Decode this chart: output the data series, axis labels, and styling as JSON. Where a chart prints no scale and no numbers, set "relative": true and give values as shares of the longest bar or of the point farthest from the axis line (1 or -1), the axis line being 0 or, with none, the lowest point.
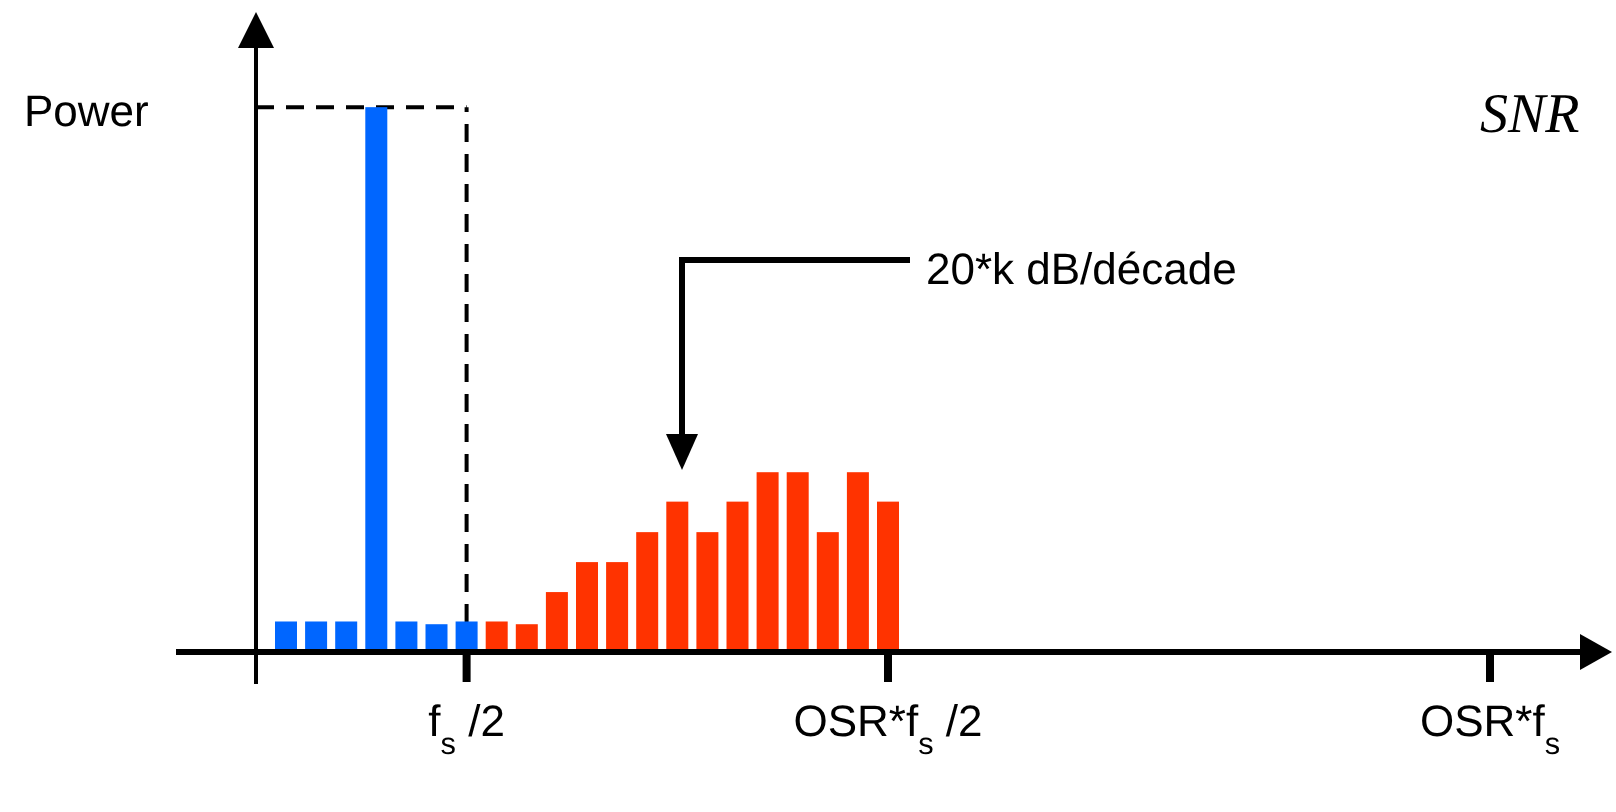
{
  "chart_data": {
    "type": "bar",
    "ylabel": "Power",
    "relative": true,
    "categories": [
      null,
      null,
      null,
      null,
      null,
      null,
      "f$_{s}$ /2",
      null,
      null,
      null,
      null,
      null,
      null,
      null,
      null,
      null,
      null,
      null,
      null,
      null,
      "OSR*f$_{s}$ /2",
      null,
      null,
      null,
      null,
      null,
      null,
      null,
      null,
      null,
      null,
      null,
      null,
      null,
      null,
      null,
      null,
      null,
      null,
      null,
      "OSR*f$_{s}$",
      null,
      null,
      null
    ],
    "values": [
      0.056,
      0.056,
      0.056,
      1,
      0.056,
      0.051,
      0.056,
      0.056,
      0.051,
      0.11,
      0.165,
      0.165,
      0.22,
      0.276,
      0.22,
      0.276,
      0.33,
      0.33,
      0.22,
      0.33,
      0.276,
      null,
      null,
      null,
      null,
      null,
      null,
      null,
      null,
      null,
      null,
      null,
      null,
      null,
      null,
      null,
      null,
      null,
      null,
      null,
      null,
      null,
      null,
      null
    ],
    "colors": [
      "#0066ff",
      "#0066ff",
      "#0066ff",
      "#0066ff",
      "#0066ff",
      "#0066ff",
      "#0066ff",
      "#ff3300",
      "#ff3300",
      "#ff3300",
      "#ff3300",
      "#ff3300",
      "#ff3300",
      "#ff3300",
      "#ff3300",
      "#ff3300",
      "#ff3300",
      "#ff3300",
      "#ff3300",
      "#ff3300",
      "#ff3300",
      null,
      null,
      null,
      null,
      null,
      null,
      null,
      null,
      null,
      null,
      null,
      null,
      null,
      null,
      null,
      null,
      null,
      null,
      null,
      null,
      null,
      null,
      null
    ],
    "tick_labels": "x",
    "ref_lines": [
      {
        "axis": "x",
        "value": "f$_{s}$ /2",
        "line_style": "dashed",
        "color": "#000000"
      },
      {
        "axis": "y",
        "value": 1,
        "line_style": "dashed",
        "color": "#000000"
      }
    ],
    "annotations": [
      "20*k dB/décade",
      "SNR"
    ]
  }
}
